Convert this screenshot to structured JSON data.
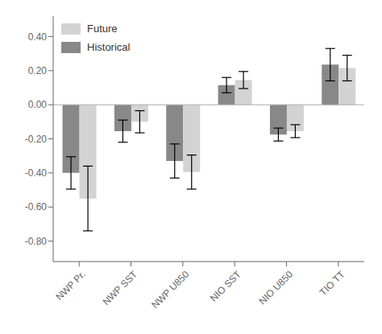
{
  "chart_data": {
    "type": "bar",
    "categories": [
      "NWP Pr.",
      "NWP SST",
      "NWP U850",
      "NIO SST",
      "NIO U850",
      "TIO TT"
    ],
    "series": [
      {
        "name": "Historical",
        "color": "#888888",
        "values": [
          -0.4,
          -0.155,
          -0.33,
          0.115,
          -0.175,
          0.235
        ],
        "errors": [
          0.095,
          0.065,
          0.1,
          0.045,
          0.038,
          0.095
        ]
      },
      {
        "name": "Future",
        "color": "#d3d3d3",
        "values": [
          -0.55,
          -0.1,
          -0.395,
          0.145,
          -0.155,
          0.215
        ],
        "errors": [
          0.19,
          0.065,
          0.1,
          0.05,
          0.038,
          0.075
        ]
      }
    ],
    "ylim": [
      -0.92,
      0.52
    ],
    "yticks": [
      {
        "value": -0.8,
        "label": "-0.80"
      },
      {
        "value": -0.6,
        "label": "-0.60"
      },
      {
        "value": -0.4,
        "label": "-0.40"
      },
      {
        "value": -0.2,
        "label": "-0.20"
      },
      {
        "value": 0,
        "label": "0.00"
      },
      {
        "value": 0.2,
        "label": "0.20"
      },
      {
        "value": 0.4,
        "label": "0.40"
      }
    ],
    "legend": "upper left"
  }
}
